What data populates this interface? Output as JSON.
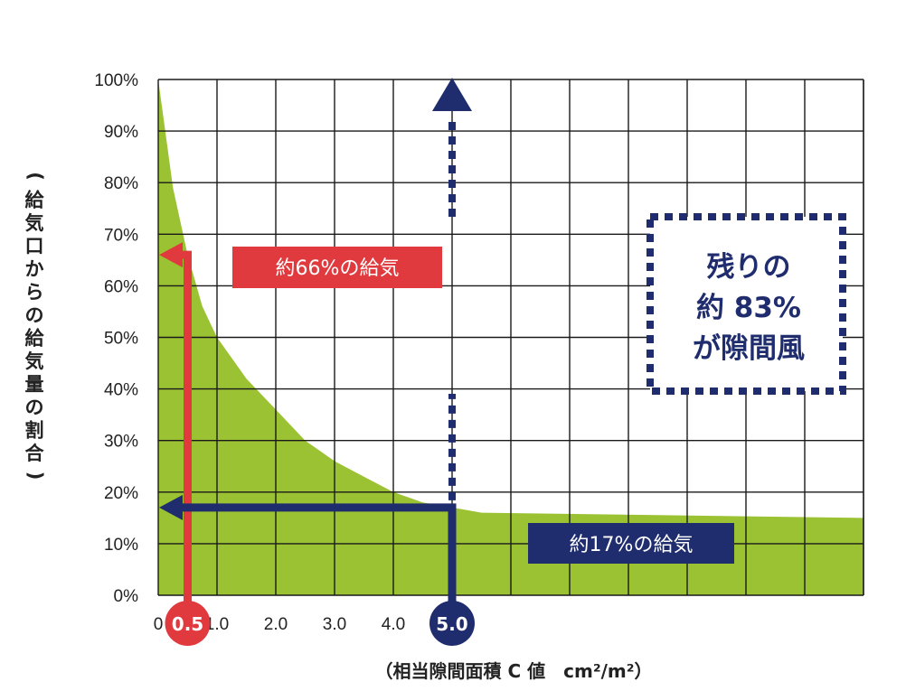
{
  "chart_data": {
    "type": "area",
    "xlabel": "（相当隙間面積 C 値　cm²/m²）",
    "ylabel": "（給気口からの給気量の割合）",
    "x_ticks": [
      "0",
      "1.0",
      "2.0",
      "3.0",
      "4.0"
    ],
    "y_ticks": [
      "0%",
      "10%",
      "20%",
      "30%",
      "40%",
      "50%",
      "60%",
      "70%",
      "80%",
      "90%",
      "100%"
    ],
    "xlim": [
      0,
      6
    ],
    "ylim": [
      0,
      100
    ],
    "grid": true,
    "series": [
      {
        "x": [
          0,
          0.25,
          0.5,
          0.75,
          1.0,
          1.5,
          2.0,
          2.5,
          3.0,
          3.5,
          4.0,
          4.5,
          5.0,
          5.5,
          6.0
        ],
        "values": [
          100,
          79,
          66,
          56,
          50,
          42,
          36,
          30,
          26,
          23,
          20,
          18,
          17,
          16,
          15
        ],
        "color": "#9bc232"
      }
    ],
    "highlights": [
      {
        "x": 0.5,
        "x_label": "0.5",
        "y": 66,
        "callout": "約66%の給気",
        "color": "#e03a3e"
      },
      {
        "x": 5.0,
        "x_label": "5.0",
        "y": 17,
        "callout": "約17%の給気",
        "color": "#1f2d6e"
      }
    ],
    "remaining_note": [
      "残りの",
      "約 83%",
      "が隙間風"
    ]
  }
}
